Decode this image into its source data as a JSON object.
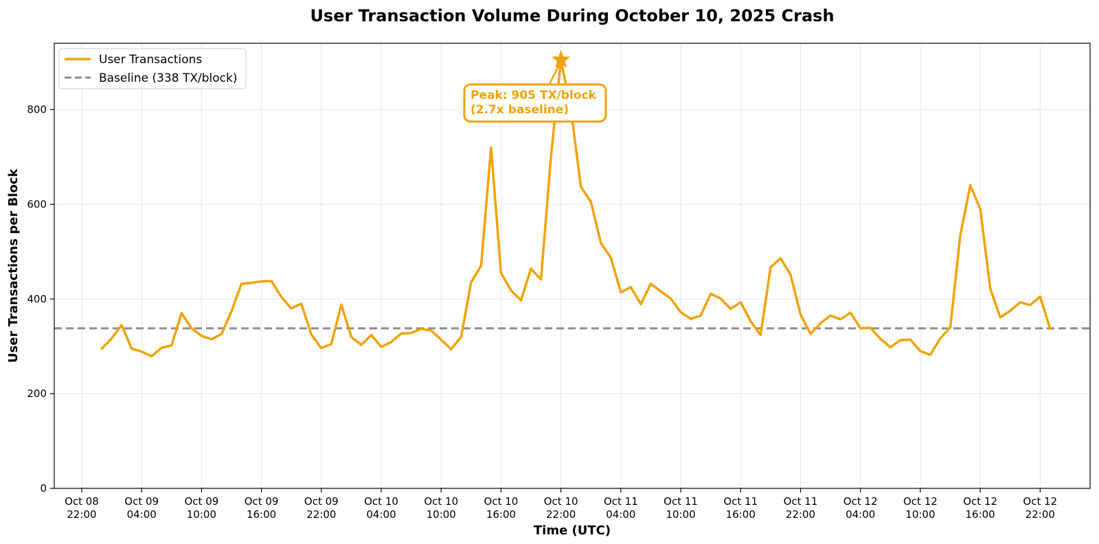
{
  "chart_data": {
    "type": "line",
    "title": "User Transaction Volume During October 10, 2025 Crash",
    "xlabel": "Time (UTC)",
    "ylabel": "User Transactions per Block",
    "ylim": [
      0,
      940
    ],
    "yticks": [
      0,
      200,
      400,
      600,
      800
    ],
    "grid": true,
    "legend_position": "upper-left",
    "colors": {
      "series": "#F0A30A",
      "baseline": "#8C8C8C"
    },
    "x_ticks": [
      {
        "line1": "Oct 08",
        "line2": "22:00",
        "t": 0
      },
      {
        "line1": "Oct 09",
        "line2": "04:00",
        "t": 6
      },
      {
        "line1": "Oct 09",
        "line2": "10:00",
        "t": 12
      },
      {
        "line1": "Oct 09",
        "line2": "16:00",
        "t": 18
      },
      {
        "line1": "Oct 09",
        "line2": "22:00",
        "t": 24
      },
      {
        "line1": "Oct 10",
        "line2": "04:00",
        "t": 30
      },
      {
        "line1": "Oct 10",
        "line2": "10:00",
        "t": 36
      },
      {
        "line1": "Oct 10",
        "line2": "16:00",
        "t": 42
      },
      {
        "line1": "Oct 10",
        "line2": "22:00",
        "t": 48
      },
      {
        "line1": "Oct 11",
        "line2": "04:00",
        "t": 54
      },
      {
        "line1": "Oct 11",
        "line2": "10:00",
        "t": 60
      },
      {
        "line1": "Oct 11",
        "line2": "16:00",
        "t": 66
      },
      {
        "line1": "Oct 11",
        "line2": "22:00",
        "t": 72
      },
      {
        "line1": "Oct 12",
        "line2": "04:00",
        "t": 78
      },
      {
        "line1": "Oct 12",
        "line2": "10:00",
        "t": 84
      },
      {
        "line1": "Oct 12",
        "line2": "16:00",
        "t": 90
      },
      {
        "line1": "Oct 12",
        "line2": "22:00",
        "t": 96
      }
    ],
    "xlim": [
      -2.75,
      101
    ],
    "series": [
      {
        "name": "User Transactions",
        "x": [
          2,
          3,
          4,
          5,
          6,
          7,
          8,
          9,
          10,
          11,
          12,
          13,
          14,
          15,
          16,
          17,
          18,
          19,
          20,
          21,
          22,
          23,
          24,
          25,
          26,
          27,
          28,
          29,
          30,
          31,
          32,
          33,
          34,
          35,
          36,
          37,
          38,
          39,
          40,
          41,
          42,
          43,
          44,
          45,
          46,
          47,
          48,
          49,
          50,
          51,
          52,
          53,
          54,
          55,
          56,
          57,
          58,
          59,
          60,
          61,
          62,
          63,
          64,
          65,
          66,
          67,
          68,
          69,
          70,
          71,
          72,
          73,
          74,
          75,
          76,
          77,
          78,
          79,
          80,
          81,
          82,
          83,
          84,
          85,
          86,
          87,
          88,
          89,
          90,
          91,
          92,
          93,
          94,
          95,
          96,
          97
        ],
        "values": [
          295,
          317,
          345,
          295,
          289,
          279,
          297,
          302,
          370,
          338,
          322,
          315,
          326,
          374,
          432,
          434,
          437,
          438,
          404,
          380,
          390,
          325,
          296,
          305,
          388,
          320,
          303,
          324,
          299,
          309,
          327,
          328,
          337,
          333,
          314,
          294,
          320,
          435,
          470,
          720,
          455,
          418,
          397,
          464,
          441,
          700,
          905,
          800,
          637,
          605,
          518,
          487,
          414,
          425,
          389,
          432,
          416,
          401,
          372,
          358,
          365,
          411,
          401,
          379,
          393,
          353,
          324,
          467,
          486,
          451,
          367,
          326,
          349,
          365,
          357,
          371,
          338,
          339,
          316,
          298,
          313,
          314,
          290,
          282,
          317,
          340,
          534,
          640,
          590,
          422,
          361,
          375,
          393,
          387,
          405,
          337
        ]
      }
    ],
    "baseline": {
      "name": "Baseline (338 TX/block)",
      "value": 338
    },
    "peak": {
      "x": 48,
      "y": 905,
      "line1": "Peak: 905 TX/block",
      "line2": "(2.7x baseline)"
    }
  }
}
